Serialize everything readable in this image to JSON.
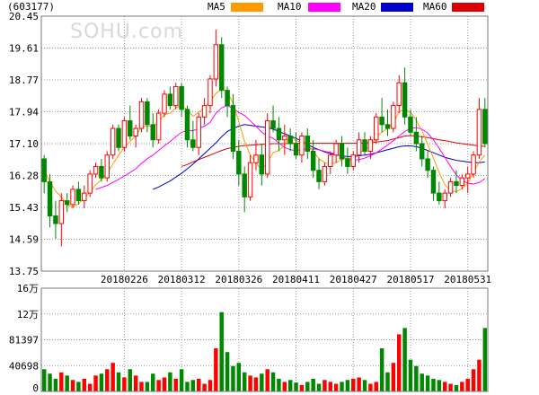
{
  "header": {
    "stock_code": "(603177)",
    "watermark": "SOHU.com"
  },
  "legend": [
    {
      "name": "MA5",
      "color": "#FF9900"
    },
    {
      "name": "MA10",
      "color": "#FF00FF"
    },
    {
      "name": "MA20",
      "color": "#0000CC"
    },
    {
      "name": "MA60",
      "color": "#DD0000"
    }
  ],
  "colors": {
    "up": "#FF0000",
    "down": "#008800",
    "grid": "#999999",
    "frame": "#777777"
  },
  "chart_data": [
    {
      "type": "candlestick",
      "price_ticks": [
        "20.45",
        "19.61",
        "18.77",
        "17.94",
        "17.10",
        "16.28",
        "15.43",
        "14.59",
        "13.75"
      ],
      "ylim": [
        13.75,
        20.45
      ],
      "date_ticks": [
        "20180226",
        "20180312",
        "20180326",
        "20180411",
        "20180427",
        "20180517",
        "20180531"
      ],
      "date_tick_index": [
        14,
        24,
        34,
        44,
        54,
        64,
        74
      ],
      "ohlc": [
        [
          16.7,
          16.8,
          15.8,
          16.1
        ],
        [
          16.1,
          16.3,
          14.9,
          15.2
        ],
        [
          15.2,
          15.6,
          14.6,
          15.0
        ],
        [
          15.0,
          15.8,
          14.4,
          15.6
        ],
        [
          15.6,
          15.8,
          15.3,
          15.5
        ],
        [
          15.5,
          16.0,
          15.4,
          15.9
        ],
        [
          15.9,
          16.1,
          15.5,
          15.6
        ],
        [
          15.6,
          16.0,
          15.4,
          15.8
        ],
        [
          15.8,
          16.4,
          15.7,
          16.3
        ],
        [
          16.3,
          16.6,
          16.2,
          16.5
        ],
        [
          16.5,
          16.7,
          16.1,
          16.2
        ],
        [
          16.2,
          16.9,
          16.1,
          16.8
        ],
        [
          16.8,
          17.6,
          16.7,
          17.5
        ],
        [
          17.5,
          17.6,
          16.9,
          17.0
        ],
        [
          17.0,
          17.8,
          16.9,
          17.7
        ],
        [
          17.7,
          18.1,
          17.2,
          17.3
        ],
        [
          17.3,
          17.6,
          17.0,
          17.5
        ],
        [
          17.5,
          18.3,
          17.4,
          18.2
        ],
        [
          18.2,
          18.3,
          17.4,
          17.6
        ],
        [
          17.6,
          17.9,
          17.0,
          17.2
        ],
        [
          17.2,
          18.0,
          17.1,
          17.9
        ],
        [
          17.9,
          18.5,
          17.8,
          18.4
        ],
        [
          18.4,
          18.6,
          18.0,
          18.1
        ],
        [
          18.1,
          18.7,
          18.0,
          18.6
        ],
        [
          18.6,
          18.7,
          17.8,
          18.0
        ],
        [
          18.0,
          18.1,
          17.0,
          17.2
        ],
        [
          17.2,
          17.7,
          16.9,
          17.0
        ],
        [
          17.0,
          17.9,
          16.8,
          17.8
        ],
        [
          17.8,
          18.3,
          17.6,
          18.1
        ],
        [
          18.1,
          18.9,
          17.9,
          18.8
        ],
        [
          18.8,
          20.1,
          18.6,
          19.7
        ],
        [
          19.7,
          19.9,
          18.3,
          18.5
        ],
        [
          18.5,
          18.6,
          17.8,
          18.1
        ],
        [
          18.1,
          18.4,
          16.7,
          16.9
        ],
        [
          16.9,
          17.2,
          16.0,
          16.3
        ],
        [
          16.3,
          16.5,
          15.3,
          15.7
        ],
        [
          15.7,
          16.8,
          15.6,
          16.6
        ],
        [
          16.6,
          17.2,
          16.4,
          16.8
        ],
        [
          16.8,
          17.1,
          16.0,
          16.3
        ],
        [
          16.3,
          17.9,
          16.2,
          17.7
        ],
        [
          17.7,
          18.1,
          17.4,
          17.5
        ],
        [
          17.5,
          17.8,
          16.9,
          17.2
        ],
        [
          17.2,
          17.6,
          16.8,
          17.3
        ],
        [
          17.3,
          17.5,
          16.9,
          17.1
        ],
        [
          17.1,
          17.4,
          16.7,
          16.8
        ],
        [
          16.8,
          17.4,
          16.6,
          17.3
        ],
        [
          17.3,
          17.5,
          16.7,
          16.9
        ],
        [
          16.9,
          17.2,
          16.2,
          16.4
        ],
        [
          16.4,
          16.7,
          15.9,
          16.1
        ],
        [
          16.1,
          16.6,
          16.0,
          16.5
        ],
        [
          16.5,
          16.9,
          16.3,
          16.8
        ],
        [
          16.8,
          17.2,
          16.6,
          17.1
        ],
        [
          17.1,
          17.3,
          16.5,
          16.7
        ],
        [
          16.7,
          17.0,
          16.3,
          16.5
        ],
        [
          16.5,
          16.9,
          16.4,
          16.8
        ],
        [
          16.8,
          17.4,
          16.6,
          17.2
        ],
        [
          17.2,
          17.4,
          16.8,
          16.9
        ],
        [
          16.9,
          17.3,
          16.7,
          17.2
        ],
        [
          17.2,
          17.9,
          17.1,
          17.8
        ],
        [
          17.8,
          18.3,
          17.4,
          17.6
        ],
        [
          17.6,
          18.0,
          17.3,
          17.5
        ],
        [
          17.5,
          18.2,
          17.4,
          18.1
        ],
        [
          18.1,
          18.9,
          17.9,
          18.7
        ],
        [
          18.7,
          19.1,
          17.6,
          17.8
        ],
        [
          17.8,
          18.0,
          17.3,
          17.4
        ],
        [
          17.4,
          17.8,
          16.9,
          17.1
        ],
        [
          17.1,
          17.3,
          16.5,
          16.7
        ],
        [
          16.7,
          16.9,
          16.2,
          16.4
        ],
        [
          16.4,
          16.5,
          15.6,
          15.8
        ],
        [
          15.8,
          16.1,
          15.5,
          15.6
        ],
        [
          15.6,
          15.9,
          15.4,
          15.8
        ],
        [
          15.8,
          16.2,
          15.7,
          16.1
        ],
        [
          16.1,
          16.4,
          15.8,
          16.0
        ],
        [
          16.0,
          16.3,
          15.9,
          16.2
        ],
        [
          16.2,
          16.5,
          15.8,
          16.3
        ],
        [
          16.3,
          16.9,
          16.2,
          16.8
        ],
        [
          16.8,
          18.3,
          16.7,
          18.0
        ],
        [
          18.0,
          18.3,
          17.0,
          17.1
        ]
      ],
      "ma5": [
        16.4,
        16.1,
        15.85,
        15.7,
        15.48,
        15.44,
        15.52,
        15.68,
        15.82,
        16.02,
        16.16,
        16.32,
        16.56,
        16.8,
        17.0,
        17.16,
        17.3,
        17.54,
        17.56,
        17.56,
        17.68,
        17.86,
        17.9,
        18.04,
        18.1,
        17.98,
        17.82,
        17.92,
        18.06,
        18.2,
        18.42,
        18.54,
        18.46,
        18.16,
        17.68,
        17.16,
        16.8,
        16.6,
        16.4,
        16.62,
        16.86,
        16.92,
        17.06,
        17.3,
        17.18,
        17.14,
        17.08,
        16.9,
        16.7,
        16.6,
        16.56,
        16.6,
        16.68,
        16.72,
        16.72,
        16.86,
        16.94,
        17.04,
        17.26,
        17.4,
        17.5,
        17.64,
        17.94,
        18.0,
        17.92,
        17.72,
        17.44,
        17.08,
        16.72,
        16.34,
        16.02,
        15.86,
        15.84,
        15.92,
        16.06,
        16.34,
        16.62,
        16.8
      ],
      "ma10": [
        null,
        null,
        null,
        null,
        null,
        null,
        null,
        null,
        null,
        15.9,
        15.95,
        16.0,
        16.08,
        16.16,
        16.25,
        16.34,
        16.44,
        16.58,
        16.7,
        16.8,
        16.92,
        17.04,
        17.16,
        17.28,
        17.4,
        17.44,
        17.44,
        17.5,
        17.56,
        17.66,
        17.9,
        18.04,
        18.1,
        18.02,
        17.92,
        17.84,
        17.7,
        17.56,
        17.4,
        17.3,
        17.24,
        17.12,
        17.0,
        16.94,
        16.92,
        16.94,
        16.96,
        16.96,
        16.94,
        16.9,
        16.86,
        16.82,
        16.76,
        16.7,
        16.66,
        16.68,
        16.72,
        16.78,
        16.86,
        16.96,
        17.06,
        17.18,
        17.3,
        17.42,
        17.5,
        17.52,
        17.48,
        17.38,
        17.2,
        16.98,
        16.74,
        16.5,
        16.28,
        16.14,
        16.06,
        16.04,
        16.08,
        16.18
      ],
      "ma20": [
        null,
        null,
        null,
        null,
        null,
        null,
        null,
        null,
        null,
        null,
        null,
        null,
        null,
        null,
        null,
        null,
        null,
        null,
        null,
        15.9,
        15.96,
        16.04,
        16.12,
        16.22,
        16.32,
        16.44,
        16.56,
        16.7,
        16.84,
        16.98,
        17.12,
        17.28,
        17.42,
        17.5,
        17.56,
        17.6,
        17.58,
        17.56,
        17.54,
        17.52,
        17.48,
        17.42,
        17.36,
        17.3,
        17.24,
        17.16,
        17.08,
        17.0,
        16.94,
        16.88,
        16.84,
        16.8,
        16.78,
        16.76,
        16.76,
        16.78,
        16.8,
        16.82,
        16.86,
        16.9,
        16.94,
        16.98,
        17.02,
        17.04,
        17.04,
        17.02,
        16.98,
        16.92,
        16.86,
        16.8,
        16.74,
        16.7,
        16.66,
        16.64,
        16.62,
        16.6,
        16.6,
        16.62
      ],
      "ma60": [
        null,
        null,
        null,
        null,
        null,
        null,
        null,
        null,
        null,
        null,
        null,
        null,
        null,
        null,
        null,
        null,
        null,
        null,
        null,
        null,
        null,
        null,
        null,
        null,
        16.5,
        16.55,
        16.62,
        16.68,
        16.74,
        16.8,
        16.86,
        16.92,
        16.97,
        17.0,
        17.03,
        17.05,
        17.06,
        17.07,
        17.08,
        17.09,
        17.1,
        17.1,
        17.1,
        17.11,
        17.11,
        17.11,
        17.11,
        17.11,
        17.11,
        17.11,
        17.11,
        17.11,
        17.11,
        17.11,
        17.11,
        17.11,
        17.12,
        17.13,
        17.14,
        17.16,
        17.18,
        17.22,
        17.26,
        17.3,
        17.31,
        17.3,
        17.28,
        17.26,
        17.23,
        17.2,
        17.18,
        17.15,
        17.12,
        17.1,
        17.08,
        17.06,
        17.04,
        17.03
      ]
    },
    {
      "type": "bar",
      "title": "volume",
      "volume_ticks": [
        "16万",
        "12万",
        "81397",
        "40698",
        "0"
      ],
      "ylim": [
        0,
        162794
      ],
      "values": [
        35000,
        28000,
        20000,
        30000,
        25000,
        18000,
        15000,
        20000,
        12000,
        25000,
        28000,
        35000,
        45000,
        30000,
        22000,
        35000,
        25000,
        15000,
        15000,
        28000,
        18000,
        22000,
        30000,
        20000,
        35000,
        15000,
        18000,
        20000,
        12000,
        18000,
        68000,
        125000,
        62000,
        40000,
        45000,
        30000,
        25000,
        22000,
        28000,
        35000,
        30000,
        20000,
        15000,
        18000,
        14000,
        10000,
        15000,
        20000,
        12000,
        18000,
        15000,
        12000,
        15000,
        18000,
        20000,
        22000,
        18000,
        12000,
        15000,
        68000,
        30000,
        45000,
        90000,
        100000,
        50000,
        40000,
        28000,
        25000,
        20000,
        18000,
        15000,
        12000,
        10000,
        15000,
        20000,
        35000,
        50000,
        100000
      ]
    }
  ]
}
